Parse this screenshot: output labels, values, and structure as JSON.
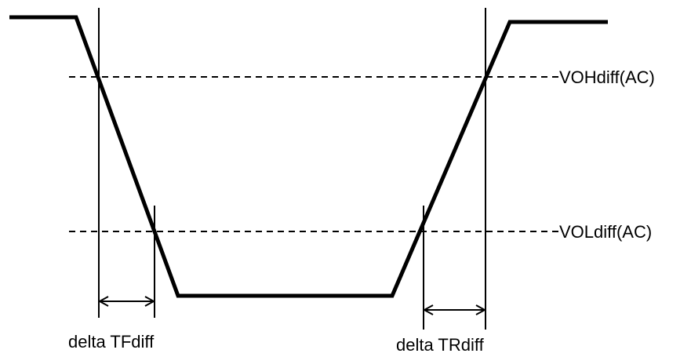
{
  "diagram": {
    "levels": {
      "high": "VOHdiff(AC)",
      "low": "VOLdiff(AC)"
    },
    "intervals": {
      "fall": "delta TFdiff",
      "rise": "delta TRdiff"
    },
    "colors": {
      "line": "#000000",
      "background": "#ffffff"
    }
  }
}
